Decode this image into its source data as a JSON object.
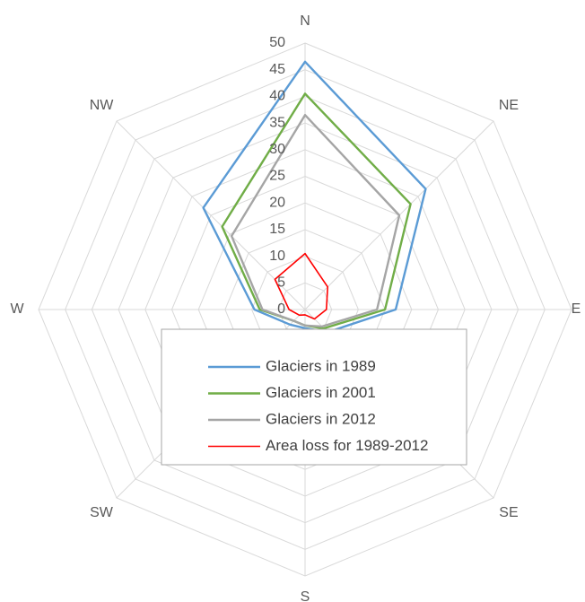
{
  "chart_data": {
    "type": "radar",
    "categories": [
      "N",
      "NE",
      "E",
      "SE",
      "S",
      "SW",
      "W",
      "NW"
    ],
    "ylim": [
      0,
      50
    ],
    "yticks": [
      0,
      5,
      10,
      15,
      20,
      25,
      30,
      35,
      40,
      45,
      50
    ],
    "grid": true,
    "series": [
      {
        "name": "Glaciers in 1989",
        "color": "#5b9bd5",
        "values": [
          46.5,
          32,
          17,
          6,
          3.5,
          4,
          9.5,
          27
        ]
      },
      {
        "name": "Glaciers in 2001",
        "color": "#70ad47",
        "values": [
          40.5,
          28,
          15,
          5,
          3,
          3,
          8.5,
          22
        ]
      },
      {
        "name": "Glaciers in 2012",
        "color": "#a5a5a5",
        "values": [
          36.5,
          25,
          13.5,
          4.5,
          3,
          3,
          8,
          19.5
        ]
      },
      {
        "name": "Area loss for 1989-2012",
        "color": "#ff0000",
        "values": [
          10.5,
          6,
          4,
          2.5,
          1,
          1.5,
          3,
          8
        ]
      }
    ],
    "legend": "center"
  }
}
